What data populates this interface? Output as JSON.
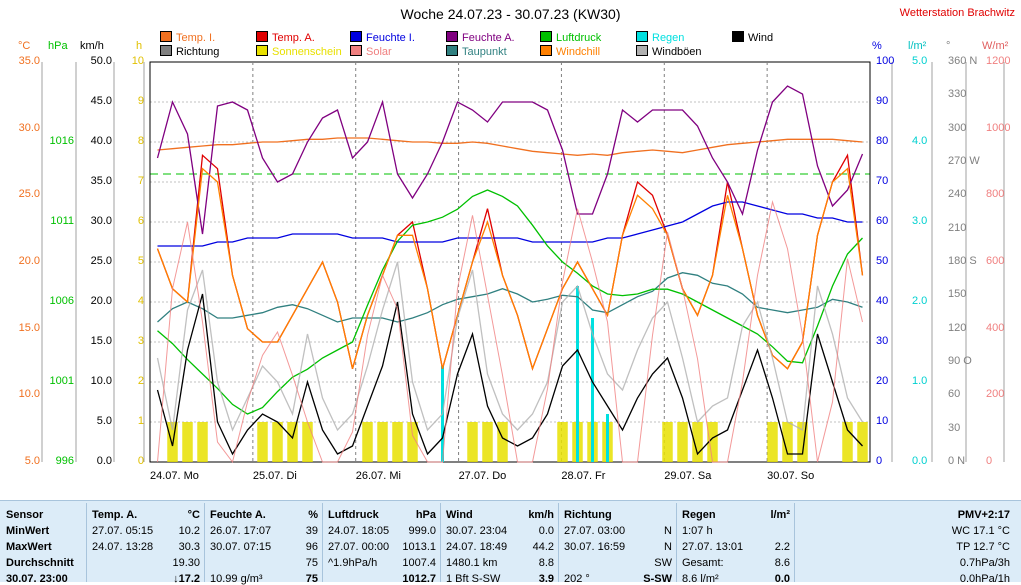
{
  "header": {
    "title": "Woche 24.07.23 - 30.07.23 (KW30)",
    "station": "Wetterstation Brachwitz"
  },
  "legend": [
    {
      "label": "Temp. I.",
      "color": "#f07020"
    },
    {
      "label": "Richtung",
      "color": "#808080"
    },
    {
      "label": "Temp. A.",
      "color": "#e00000"
    },
    {
      "label": "Sonnenschein",
      "color": "#e8e000"
    },
    {
      "label": "Feuchte I.",
      "color": "#0000e0"
    },
    {
      "label": "Solar",
      "color": "#f08080"
    },
    {
      "label": "Feuchte A.",
      "color": "#800080"
    },
    {
      "label": "Taupunkt",
      "color": "#308080"
    },
    {
      "label": "Luftdruck",
      "color": "#00c000"
    },
    {
      "label": "Windchill",
      "color": "#ff8000"
    },
    {
      "label": "Regen",
      "color": "#00e0e0"
    },
    {
      "label": "Windböen",
      "color": "#b0b0b0"
    },
    {
      "label": "Wind",
      "color": "#000000"
    }
  ],
  "axes_units": {
    "celsius": "°C",
    "hpa": "hPa",
    "kmh": "km/h",
    "h": "h",
    "percent": "%",
    "lm2": "l/m²",
    "deg": "°",
    "wm2": "W/m²"
  },
  "chart_data": {
    "type": "line",
    "title": "Woche 24.07.23 - 30.07.23 (KW30)",
    "x_labels": [
      "24.07. Mo",
      "25.07. Di",
      "26.07. Mi",
      "27.07. Do",
      "28.07. Fr",
      "29.07. Sa",
      "30.07. So"
    ],
    "axes": {
      "celsius": {
        "min": 5,
        "max": 35,
        "ticks": [
          "35.0",
          "30.0",
          "25.0",
          "20.0",
          "15.0",
          "10.0",
          "5.0"
        ],
        "color": "#f07020"
      },
      "hpa": {
        "min": 996,
        "max": 1021,
        "ticks": [
          "1016",
          "1011",
          "1006",
          "1001",
          "996"
        ],
        "color": "#00c000"
      },
      "kmh": {
        "min": 0,
        "max": 50,
        "ticks": [
          "50.0",
          "45.0",
          "40.0",
          "35.0",
          "30.0",
          "25.0",
          "20.0",
          "15.0",
          "10.0",
          "5.0",
          "0.0"
        ],
        "color": "#000000"
      },
      "hours": {
        "min": 0,
        "max": 10,
        "ticks": [
          "10",
          "9",
          "8",
          "7",
          "6",
          "5",
          "4",
          "3",
          "2",
          "1",
          "0"
        ],
        "color": "#e0c000"
      },
      "percent": {
        "min": 0,
        "max": 100,
        "ticks": [
          "100",
          "90",
          "80",
          "70",
          "60",
          "50",
          "40",
          "30",
          "20",
          "10",
          "0"
        ],
        "color": "#0000e0"
      },
      "rain": {
        "min": 0,
        "max": 5,
        "ticks": [
          "5.0",
          "4.0",
          "3.0",
          "2.0",
          "1.0",
          "0.0"
        ],
        "color": "#00d0d0"
      },
      "direction": {
        "ticks": [
          "360 N",
          "330",
          "300",
          "270 W",
          "240",
          "210",
          "180 S",
          "150",
          "120",
          "90 O",
          "60",
          "30",
          "0 N"
        ],
        "color": "#808080"
      },
      "solar": {
        "min": 0,
        "max": 1200,
        "ticks": [
          "1200",
          "1000",
          "800",
          "600",
          "400",
          "200",
          "0"
        ],
        "color": "#f08080"
      }
    },
    "series": [
      {
        "name": "Temp. I.",
        "color": "#f07020",
        "axis": "celsius",
        "values": [
          28.4,
          28.5,
          28.6,
          28.7,
          28.8,
          28.8,
          28.9,
          29.0,
          29.0,
          29.1,
          29.2,
          29.2,
          29.3,
          29.3,
          29.3,
          29.2,
          29.1,
          29.0,
          29.0,
          28.9,
          28.9,
          29.0,
          28.9,
          28.7,
          28.5,
          28.3,
          28.2,
          28.1,
          28.0,
          28.1,
          28.0,
          28.2,
          28.3,
          28.4,
          28.3,
          28.2,
          28.4,
          28.6,
          28.8,
          28.9,
          29.0,
          29.1,
          29.2,
          29.2,
          29.2,
          29.2,
          29.1,
          29.0
        ]
      },
      {
        "name": "Temp. A.",
        "color": "#e00000",
        "axis": "celsius",
        "values": [
          21,
          18,
          17,
          28,
          27,
          19,
          15,
          14,
          14,
          16,
          18,
          20,
          17,
          12,
          16,
          19,
          22,
          23,
          18,
          12,
          16,
          20,
          24,
          19,
          16,
          12,
          15,
          18,
          20,
          18,
          16,
          22,
          26,
          25,
          22,
          18,
          16,
          19,
          26,
          21,
          16,
          13,
          12,
          14,
          22,
          26,
          28,
          19
        ]
      },
      {
        "name": "Feuchte I.",
        "color": "#0000e0",
        "axis": "percent",
        "values": [
          54,
          54,
          54,
          54,
          55,
          55,
          56,
          56,
          56,
          57,
          57,
          57,
          57,
          56,
          56,
          56,
          55,
          55,
          55,
          55,
          56,
          56,
          56,
          56,
          56,
          55,
          55,
          55,
          55,
          55,
          56,
          56,
          57,
          58,
          59,
          60,
          62,
          64,
          65,
          65,
          64,
          63,
          62,
          62,
          61,
          61,
          60,
          60
        ]
      },
      {
        "name": "Feuchte A.",
        "color": "#800080",
        "axis": "percent",
        "values": [
          76,
          90,
          82,
          57,
          89,
          90,
          88,
          76,
          70,
          72,
          80,
          86,
          88,
          76,
          80,
          90,
          72,
          66,
          72,
          80,
          90,
          88,
          85,
          90,
          90,
          90,
          88,
          78,
          62,
          62,
          72,
          88,
          85,
          88,
          88,
          88,
          84,
          76,
          70,
          62,
          78,
          90,
          94,
          92,
          74,
          64,
          68,
          77
        ]
      },
      {
        "name": "Taupunkt",
        "color": "#308080",
        "axis": "celsius",
        "values": [
          15.5,
          16.5,
          17.0,
          16.5,
          15.8,
          15.8,
          16.0,
          16.2,
          16.6,
          16.8,
          16.5,
          16.0,
          15.5,
          15.8,
          15.8,
          15.8,
          15.5,
          15.8,
          16.2,
          16.8,
          17.2,
          17.4,
          17.6,
          18.0,
          17.6,
          17.0,
          17.2,
          17.5,
          17.4,
          16.4,
          16.2,
          16.8,
          17.4,
          17.8,
          18.8,
          19.2,
          19.0,
          18.4,
          18.2,
          17.6,
          16.6,
          16.4,
          16.2,
          16.4,
          16.6,
          17.2,
          17.0,
          16.6
        ]
      },
      {
        "name": "Luftdruck",
        "color": "#00c000",
        "axis": "hpa",
        "values": [
          1004.2,
          1003.4,
          1002.4,
          1001.5,
          1000.6,
          999.6,
          999.0,
          999.4,
          1000.4,
          1001.3,
          1001.8,
          1002.5,
          1003.0,
          1003.5,
          1005.8,
          1008.0,
          1009.8,
          1010.8,
          1011.0,
          1011.3,
          1011.8,
          1012.6,
          1013.0,
          1012.6,
          1012.0,
          1010.8,
          1009.5,
          1008.5,
          1007.8,
          1007.0,
          1006.5,
          1006.4,
          1006.5,
          1006.8,
          1006.8,
          1006.5,
          1006.0,
          1005.5,
          1005.0,
          1004.5,
          1004.0,
          1003.2,
          1002.3,
          1002.2,
          1004.5,
          1007.0,
          1009.0,
          1010.0
        ]
      },
      {
        "name": "Windchill",
        "color": "#ff8000",
        "axis": "celsius",
        "values": [
          21,
          18,
          17,
          27,
          26,
          19,
          15,
          14,
          14,
          16,
          18,
          20,
          17,
          12,
          16,
          19,
          22,
          22,
          18,
          12,
          16,
          20,
          23,
          19,
          16,
          12,
          15,
          18,
          20,
          18,
          16,
          22,
          25,
          24,
          22,
          18,
          16,
          19,
          25,
          21,
          16,
          13,
          12,
          14,
          22,
          26,
          27,
          19
        ]
      },
      {
        "name": "Windböen",
        "color": "#b0b0b0",
        "axis": "kmh",
        "values": [
          13,
          4,
          19,
          24,
          10,
          4,
          8,
          12,
          10,
          6,
          16,
          8,
          4,
          6,
          12,
          19,
          25,
          10,
          4,
          6,
          18,
          24,
          11,
          6,
          4,
          6,
          10,
          20,
          22,
          16,
          11,
          9,
          14,
          18,
          20,
          13,
          5,
          7,
          8,
          17,
          20,
          13,
          5,
          4,
          22,
          16,
          8,
          5
        ]
      },
      {
        "name": "Wind",
        "color": "#000000",
        "axis": "kmh",
        "values": [
          9,
          2,
          14,
          21,
          5,
          1,
          4,
          6,
          5,
          3,
          10,
          4,
          1,
          2,
          7,
          12,
          20,
          6,
          1,
          3,
          11,
          16,
          7,
          3,
          2,
          3,
          6,
          12,
          14,
          10,
          7,
          4,
          8,
          11,
          13,
          8,
          1,
          3,
          4,
          9,
          14,
          8,
          1,
          1,
          16,
          10,
          4,
          2
        ]
      },
      {
        "name": "Solar",
        "color": "#f08080",
        "axis": "solar",
        "values": [
          0,
          520,
          720,
          420,
          60,
          0,
          180,
          320,
          390,
          260,
          120,
          0,
          0,
          90,
          380,
          560,
          460,
          80,
          0,
          0,
          520,
          740,
          500,
          260,
          0,
          0,
          220,
          540,
          760,
          600,
          420,
          0,
          0,
          380,
          690,
          520,
          310,
          0,
          0,
          240,
          560,
          780,
          640,
          380,
          0,
          180,
          610,
          420
        ]
      }
    ],
    "bars": [
      {
        "name": "Sonnenschein",
        "color": "#e8e000",
        "axis": "hours",
        "values": [
          0,
          1,
          1,
          1,
          0,
          0,
          0,
          1,
          1,
          1,
          1,
          0,
          0,
          0,
          1,
          1,
          1,
          1,
          0,
          0,
          0,
          1,
          1,
          1,
          0,
          0,
          0,
          1,
          1,
          1,
          1,
          0,
          0,
          0,
          1,
          1,
          1,
          1,
          0,
          0,
          0,
          1,
          1,
          1,
          0,
          0,
          1,
          1
        ]
      },
      {
        "name": "Regen",
        "color": "#00e0e0",
        "axis": "rain",
        "values": [
          0,
          0,
          0,
          0,
          0,
          0,
          0,
          0,
          0,
          0,
          0,
          0,
          0,
          0,
          0,
          0,
          0,
          0,
          0,
          1.2,
          0,
          0,
          0,
          0,
          0,
          0,
          0,
          0,
          2.2,
          1.8,
          0.6,
          0,
          0,
          0,
          0,
          0,
          0,
          0,
          0,
          0,
          0,
          0,
          0,
          0,
          0,
          0,
          0,
          0
        ]
      }
    ],
    "grid": true
  },
  "table": {
    "rows": [
      {
        "label": "Sensor",
        "temp_a": [
          "Temp. A.",
          "°C"
        ],
        "feuchte": [
          "Feuchte A.",
          "%"
        ],
        "luftdruck": [
          "Luftdruck",
          "hPa"
        ],
        "wind": [
          "Wind",
          "km/h"
        ],
        "richtung": [
          "Richtung",
          ""
        ],
        "regen": [
          "Regen",
          "l/m²"
        ],
        "extra": "PMV+2:17"
      },
      {
        "label": "MinWert",
        "temp_a": [
          "27.07.  05:15",
          "10.2"
        ],
        "feuchte": [
          "26.07.  17:07",
          "39"
        ],
        "luftdruck": [
          "24.07.  18:05",
          "999.0"
        ],
        "wind": [
          "30.07.  23:04",
          "0.0"
        ],
        "richtung": [
          "27.07.  03:00",
          "N"
        ],
        "regen": [
          "1:07 h",
          ""
        ],
        "extra": "WC 17.1 °C"
      },
      {
        "label": "MaxWert",
        "temp_a": [
          "24.07.  13:28",
          "30.3"
        ],
        "feuchte": [
          "30.07.  07:15",
          "96"
        ],
        "luftdruck": [
          "27.07.  00:00",
          "1013.1"
        ],
        "wind": [
          "24.07.  18:49",
          "44.2"
        ],
        "richtung": [
          "30.07.  16:59",
          "N"
        ],
        "regen": [
          "27.07.  13:01",
          "2.2"
        ],
        "extra": "TP 12.7 °C"
      },
      {
        "label": "Durchschnitt",
        "temp_a": [
          "",
          "19.30"
        ],
        "feuchte": [
          "",
          "75"
        ],
        "luftdruck": [
          "^1.9hPa/h",
          "1007.4"
        ],
        "wind": [
          "1480.1 km",
          "8.8"
        ],
        "richtung": [
          "",
          "SW"
        ],
        "regen": [
          "Gesamt:",
          "8.6"
        ],
        "extra": "0.7hPa/3h"
      },
      {
        "label": "30.07. 23:00",
        "temp_a": [
          "",
          "↓17.2"
        ],
        "feuchte": [
          "10.99 g/m³",
          "75"
        ],
        "luftdruck": [
          "",
          "1012.7"
        ],
        "wind": [
          "1 Bft S-SW",
          "3.9"
        ],
        "richtung": [
          "202 °",
          "S-SW"
        ],
        "regen": [
          "8.6 l/m²",
          "0.0"
        ],
        "extra": "0.0hPa/1h"
      }
    ]
  }
}
